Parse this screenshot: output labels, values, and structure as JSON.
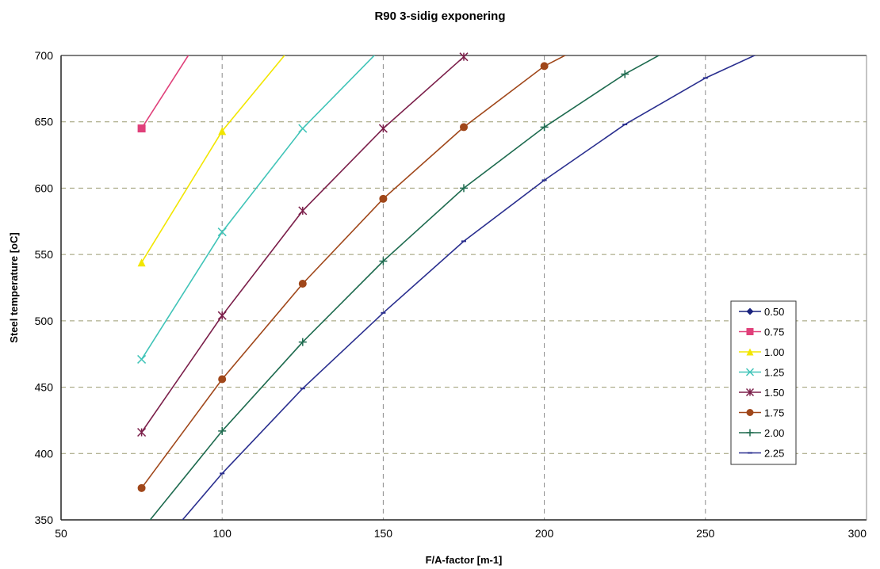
{
  "chart_data": {
    "type": "line",
    "title": "R90 3-sidig exponering",
    "xlabel": "F/A-factor [m-1]",
    "ylabel": "Steel temperature [oC]",
    "xlim": [
      50,
      300
    ],
    "ylim": [
      350,
      700
    ],
    "xticks": [
      "50",
      "100",
      "150",
      "200",
      "250",
      "300"
    ],
    "yticks": [
      "350",
      "400",
      "450",
      "500",
      "550",
      "600",
      "650",
      "700"
    ],
    "grid": true,
    "legend_position": "right",
    "series": [
      {
        "name": "0.50",
        "color": "#1a237e",
        "marker": "diamond",
        "x": [],
        "y": []
      },
      {
        "name": "0.75",
        "color": "#e0407a",
        "marker": "square",
        "x": [
          75,
          90
        ],
        "y": [
          645,
          702
        ]
      },
      {
        "name": "1.00",
        "color": "#f2e600",
        "marker": "triangle",
        "x": [
          75,
          100,
          120
        ],
        "y": [
          544,
          643,
          702
        ]
      },
      {
        "name": "1.25",
        "color": "#40c4b8",
        "marker": "x",
        "x": [
          75,
          100,
          125,
          148
        ],
        "y": [
          471,
          567,
          645,
          702
        ]
      },
      {
        "name": "1.50",
        "color": "#7b1f4a",
        "marker": "star",
        "x": [
          75,
          100,
          125,
          150,
          175
        ],
        "y": [
          416,
          504,
          583,
          645,
          699
        ]
      },
      {
        "name": "1.75",
        "color": "#a0471a",
        "marker": "circle",
        "x": [
          75,
          100,
          125,
          150,
          175,
          200,
          208
        ],
        "y": [
          374,
          456,
          528,
          592,
          646,
          692,
          702
        ]
      },
      {
        "name": "2.00",
        "color": "#1e6b4f",
        "marker": "plus",
        "x": [
          77,
          100,
          125,
          150,
          175,
          200,
          225,
          237
        ],
        "y": [
          348,
          417,
          484,
          545,
          600,
          646,
          686,
          702
        ]
      },
      {
        "name": "2.25",
        "color": "#2a2f8f",
        "marker": "dash",
        "x": [
          87,
          100,
          125,
          150,
          175,
          200,
          225,
          250,
          267
        ],
        "y": [
          348,
          385,
          449,
          506,
          560,
          606,
          648,
          683,
          702
        ]
      }
    ]
  }
}
